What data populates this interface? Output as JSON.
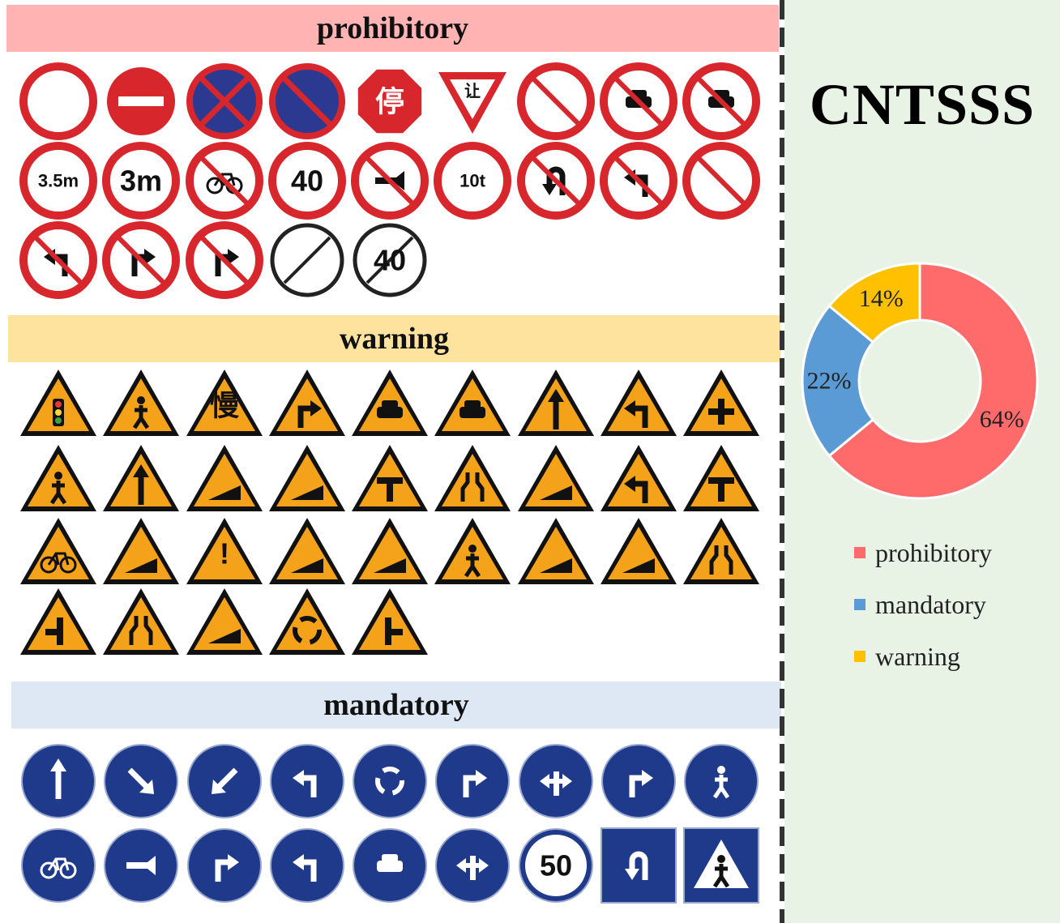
{
  "headers": {
    "prohibitory": "prohibitory",
    "warning": "warning",
    "mandatory": "mandatory"
  },
  "dataset_name": "CNTSSS",
  "colors": {
    "prohibitory": "#ff6b6b",
    "mandatory": "#5b9bd5",
    "warning": "#ffc000",
    "prohibitory_header": "#ffb3b3",
    "warning_header": "#fde39d",
    "mandatory_header": "#dde8f4",
    "right_panel": "#e8f3e6"
  },
  "chart_data": {
    "type": "pie",
    "donut": true,
    "categories": [
      "prohibitory",
      "mandatory",
      "warning"
    ],
    "values": [
      64,
      22,
      14
    ],
    "value_labels": [
      "64%",
      "22%",
      "14%"
    ],
    "legend": [
      "prohibitory",
      "mandatory",
      "warning"
    ],
    "legend_placement": "bottom"
  },
  "signs": {
    "prohibitory": [
      {
        "icon": "no-vehicles-sign-icon"
      },
      {
        "icon": "no-entry-sign-icon"
      },
      {
        "icon": "no-stopping-sign-icon"
      },
      {
        "icon": "no-parking-sign-icon"
      },
      {
        "icon": "stop-sign-icon",
        "text": "停"
      },
      {
        "icon": "yield-sign-icon",
        "text": "让"
      },
      {
        "icon": "no-overtaking-sign-icon"
      },
      {
        "icon": "no-trucks-sign-icon"
      },
      {
        "icon": "no-cars-sign-icon"
      },
      {
        "icon": "height-limit-sign-icon",
        "text": "3.5m"
      },
      {
        "icon": "width-limit-sign-icon",
        "text": "3m"
      },
      {
        "icon": "no-bicycles-sign-icon"
      },
      {
        "icon": "speed-limit-sign-icon",
        "text": "40"
      },
      {
        "icon": "no-horn-sign-icon"
      },
      {
        "icon": "weight-limit-sign-icon",
        "text": "10t"
      },
      {
        "icon": "no-u-turn-sign-icon"
      },
      {
        "icon": "no-left-straight-sign-icon"
      },
      {
        "icon": "no-straight-right-sign-icon"
      },
      {
        "icon": "no-left-turn-sign-icon"
      },
      {
        "icon": "no-right-turn-sign-icon"
      },
      {
        "icon": "no-left-right-turn-sign-icon"
      },
      {
        "icon": "end-no-overtaking-sign-icon"
      },
      {
        "icon": "end-speed-limit-sign-icon",
        "text": "40"
      }
    ],
    "warning": [
      {
        "icon": "traffic-light-warning-icon"
      },
      {
        "icon": "road-works-warning-icon"
      },
      {
        "icon": "slow-warning-icon",
        "text": "慢"
      },
      {
        "icon": "merge-right-warning-icon"
      },
      {
        "icon": "ford-warning-icon"
      },
      {
        "icon": "accident-warning-icon"
      },
      {
        "icon": "lanes-split-warning-icon"
      },
      {
        "icon": "merge-left-warning-icon"
      },
      {
        "icon": "crossroads-warning-icon"
      },
      {
        "icon": "pedestrian-crossing-warning-icon"
      },
      {
        "icon": "two-way-traffic-warning-icon"
      },
      {
        "icon": "steep-descent-warning-icon"
      },
      {
        "icon": "winding-road-warning-icon"
      },
      {
        "icon": "t-junction-warning-icon"
      },
      {
        "icon": "narrow-road-warning-icon"
      },
      {
        "icon": "steep-ascent-warning-icon"
      },
      {
        "icon": "left-curve-warning-icon"
      },
      {
        "icon": "y-junction-warning-icon"
      },
      {
        "icon": "cyclists-warning-icon"
      },
      {
        "icon": "bumpy-road-warning-icon"
      },
      {
        "icon": "danger-warning-icon",
        "text": "!"
      },
      {
        "icon": "tunnel-warning-icon"
      },
      {
        "icon": "falling-rocks-left-warning-icon"
      },
      {
        "icon": "children-warning-icon"
      },
      {
        "icon": "cliff-warning-icon"
      },
      {
        "icon": "falling-rocks-right-warning-icon"
      },
      {
        "icon": "road-narrows-both-warning-icon"
      },
      {
        "icon": "side-road-left-warning-icon"
      },
      {
        "icon": "road-narrows-right-warning-icon"
      },
      {
        "icon": "series-of-bends-warning-icon"
      },
      {
        "icon": "roundabout-warning-icon"
      },
      {
        "icon": "side-road-right-warning-icon"
      }
    ],
    "mandatory": [
      {
        "icon": "straight-ahead-sign-icon"
      },
      {
        "icon": "keep-right-sign-icon"
      },
      {
        "icon": "keep-left-sign-icon"
      },
      {
        "icon": "straight-or-left-sign-icon"
      },
      {
        "icon": "roundabout-sign-icon"
      },
      {
        "icon": "straight-or-right-sign-icon"
      },
      {
        "icon": "all-directions-sign-icon"
      },
      {
        "icon": "turn-right-sign-icon"
      },
      {
        "icon": "pedestrians-sign-icon"
      },
      {
        "icon": "bicycle-lane-sign-icon"
      },
      {
        "icon": "horn-sign-icon"
      },
      {
        "icon": "straight-or-right-split-sign-icon"
      },
      {
        "icon": "turn-left-sign-icon"
      },
      {
        "icon": "motor-vehicle-lane-sign-icon"
      },
      {
        "icon": "left-or-right-sign-icon"
      },
      {
        "icon": "minimum-speed-sign-icon",
        "text": "50"
      },
      {
        "icon": "u-turn-sign-icon"
      },
      {
        "icon": "crosswalk-sign-icon"
      }
    ]
  }
}
